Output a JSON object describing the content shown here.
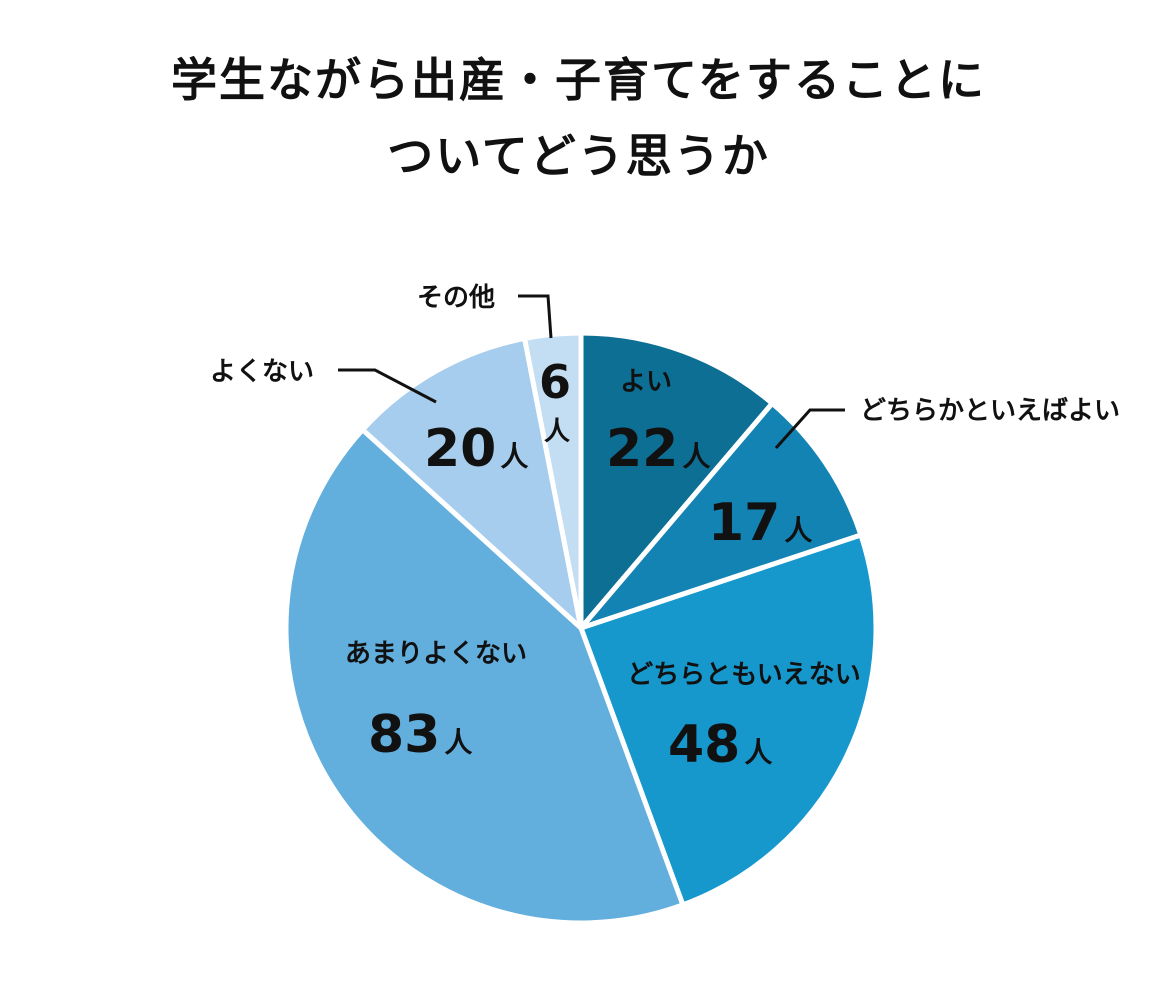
{
  "chart_data": {
    "type": "pie",
    "title_lines": [
      "学生ながら出産・子育てをすることに",
      "ついてどう思うか"
    ],
    "unit": "人",
    "slices": [
      {
        "label": "よい",
        "value": 22,
        "color": "#0e6f95"
      },
      {
        "label": "どちらかといえばよい",
        "value": 17,
        "color": "#1283b3"
      },
      {
        "label": "どちらともいえない",
        "value": 48,
        "color": "#1798cd"
      },
      {
        "label": "あまりよくない",
        "value": 83,
        "color": "#62aedd"
      },
      {
        "label": "よくない",
        "value": 20,
        "color": "#a6cded"
      },
      {
        "label": "その他",
        "value": 6,
        "color": "#c3ddf3"
      }
    ]
  }
}
